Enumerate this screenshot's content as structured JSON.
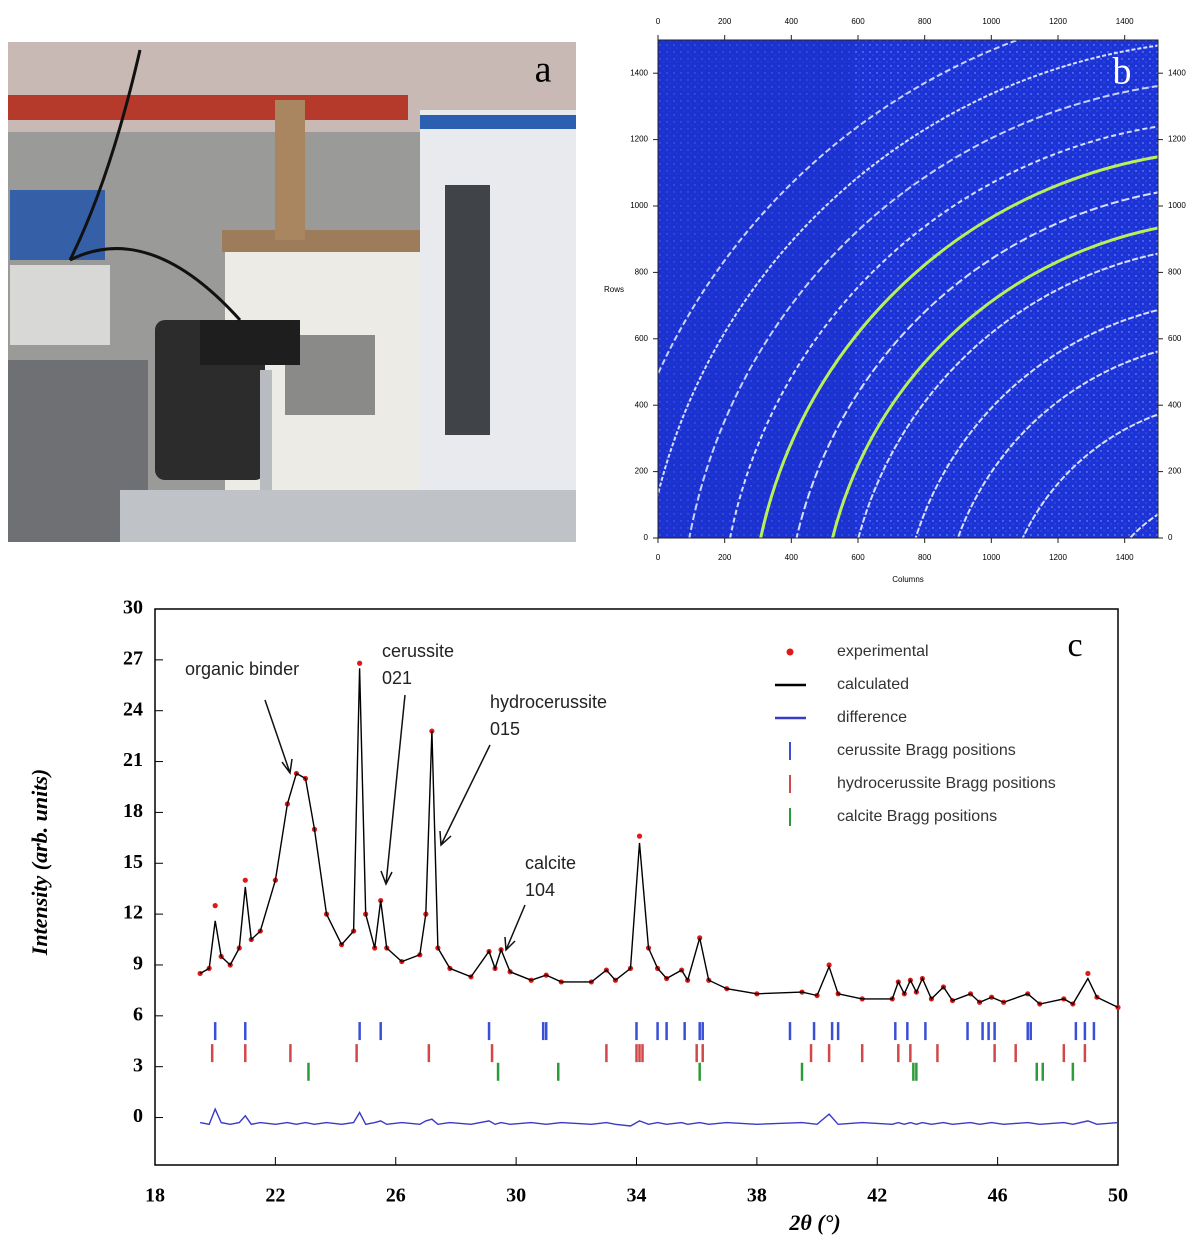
{
  "photo": {
    "label": "a"
  },
  "detector_image": {
    "label": "b",
    "xlabel": "Columns",
    "ylabel": "Rows",
    "xlim": [
      0,
      1500
    ],
    "ylim": [
      0,
      1500
    ],
    "xticks": [
      0,
      200,
      400,
      600,
      800,
      1000,
      1200,
      1400
    ],
    "yticks": [
      0,
      200,
      400,
      600,
      800,
      1000,
      1200,
      1400
    ]
  },
  "chart_data": {
    "type": "line",
    "panel_label": "c",
    "xlabel": "2θ (°)",
    "ylabel": "Intensity (arb. units)",
    "xlim": [
      18,
      50
    ],
    "ylim": [
      -2.8,
      30
    ],
    "xticks": [
      18,
      22,
      26,
      30,
      34,
      38,
      42,
      46,
      50
    ],
    "yticks": [
      0,
      3,
      6,
      9,
      12,
      15,
      18,
      21,
      24,
      27,
      30
    ],
    "annotations": [
      {
        "lines": [
          "organic binder"
        ]
      },
      {
        "lines": [
          "cerussite",
          "021"
        ]
      },
      {
        "lines": [
          "hydrocerussite",
          "015"
        ]
      },
      {
        "lines": [
          "calcite",
          "104"
        ]
      }
    ],
    "x": [
      19.5,
      19.8,
      20.0,
      20.2,
      20.5,
      20.8,
      21.0,
      21.2,
      21.5,
      22.0,
      22.4,
      22.7,
      23.0,
      23.3,
      23.7,
      24.2,
      24.6,
      24.8,
      25.0,
      25.3,
      25.5,
      25.7,
      26.2,
      26.8,
      27.0,
      27.2,
      27.4,
      27.8,
      28.5,
      29.1,
      29.3,
      29.5,
      29.8,
      30.5,
      31.0,
      31.5,
      32.5,
      33.0,
      33.3,
      33.8,
      34.1,
      34.4,
      34.7,
      35.0,
      35.5,
      35.7,
      36.1,
      36.4,
      37.0,
      38.0,
      39.5,
      40.0,
      40.4,
      40.7,
      41.5,
      42.5,
      42.7,
      42.9,
      43.1,
      43.3,
      43.5,
      43.8,
      44.2,
      44.5,
      45.1,
      45.4,
      45.8,
      46.2,
      47.0,
      47.4,
      48.2,
      48.5,
      49.0,
      49.3,
      50.0
    ],
    "series": [
      {
        "name": "experimental",
        "color": "#e01818",
        "marker": "dot",
        "values": [
          8.5,
          8.8,
          12.5,
          9.5,
          9.0,
          10.0,
          14.0,
          10.5,
          11.0,
          14.0,
          18.5,
          20.3,
          20.0,
          17.0,
          12.0,
          10.2,
          11.0,
          26.8,
          12.0,
          10.0,
          12.8,
          10.0,
          9.2,
          9.6,
          12.0,
          22.8,
          10.0,
          8.8,
          8.3,
          9.8,
          8.8,
          9.9,
          8.6,
          8.1,
          8.4,
          8.0,
          8.0,
          8.7,
          8.1,
          8.8,
          16.6,
          10.0,
          8.8,
          8.2,
          8.7,
          8.1,
          10.6,
          8.1,
          7.6,
          7.3,
          7.4,
          7.2,
          9.0,
          7.3,
          7.0,
          7.0,
          8.0,
          7.3,
          8.1,
          7.4,
          8.2,
          7.0,
          7.7,
          6.9,
          7.3,
          6.8,
          7.1,
          6.8,
          7.3,
          6.7,
          7.0,
          6.7,
          8.5,
          7.1,
          6.5
        ]
      },
      {
        "name": "calculated",
        "color": "#000000",
        "marker": "line",
        "values": [
          8.5,
          8.8,
          11.6,
          9.5,
          9.0,
          10.0,
          13.6,
          10.5,
          11.0,
          14.0,
          18.5,
          20.3,
          20.0,
          17.0,
          12.0,
          10.2,
          11.0,
          26.5,
          12.0,
          10.0,
          12.8,
          10.0,
          9.2,
          9.6,
          12.0,
          22.8,
          10.0,
          8.8,
          8.3,
          9.8,
          8.8,
          9.9,
          8.6,
          8.1,
          8.4,
          8.0,
          8.0,
          8.7,
          8.1,
          8.8,
          16.2,
          10.0,
          8.8,
          8.2,
          8.7,
          8.1,
          10.6,
          8.1,
          7.6,
          7.3,
          7.4,
          7.2,
          8.9,
          7.3,
          7.0,
          7.0,
          8.0,
          7.3,
          8.1,
          7.4,
          8.2,
          7.0,
          7.7,
          6.9,
          7.3,
          6.8,
          7.1,
          6.8,
          7.3,
          6.7,
          7.0,
          6.7,
          8.2,
          7.1,
          6.5
        ]
      },
      {
        "name": "difference",
        "color": "#3a3ac8",
        "marker": "line",
        "values": [
          -0.3,
          -0.4,
          0.5,
          -0.3,
          -0.4,
          -0.3,
          0.1,
          -0.4,
          -0.3,
          -0.4,
          -0.3,
          -0.4,
          -0.3,
          -0.4,
          -0.3,
          -0.4,
          -0.3,
          0.3,
          -0.4,
          -0.3,
          -0.2,
          -0.4,
          -0.3,
          -0.4,
          -0.2,
          -0.1,
          -0.4,
          -0.3,
          -0.4,
          -0.2,
          -0.4,
          -0.3,
          -0.4,
          -0.3,
          -0.4,
          -0.3,
          -0.4,
          -0.3,
          -0.4,
          -0.5,
          -0.2,
          -0.4,
          -0.3,
          -0.4,
          -0.3,
          -0.4,
          -0.3,
          -0.4,
          -0.3,
          -0.4,
          -0.3,
          -0.4,
          0.2,
          -0.4,
          -0.3,
          -0.4,
          -0.3,
          -0.4,
          -0.3,
          -0.4,
          -0.3,
          -0.4,
          -0.3,
          -0.4,
          -0.3,
          -0.4,
          -0.3,
          -0.4,
          -0.3,
          -0.4,
          -0.3,
          -0.4,
          -0.2,
          -0.4,
          -0.3
        ]
      },
      {
        "name": "cerussite Bragg positions",
        "color": "#3a4fd8",
        "marker": "tick",
        "y": 5.1,
        "positions": [
          20.0,
          21.0,
          24.8,
          25.5,
          29.1,
          30.9,
          31.0,
          34.0,
          34.7,
          35.0,
          35.6,
          36.1,
          36.2,
          39.1,
          39.9,
          40.5,
          40.7,
          42.6,
          43.0,
          43.6,
          45.0,
          45.5,
          45.7,
          45.9,
          47.0,
          47.1,
          48.6,
          48.9,
          49.2
        ]
      },
      {
        "name": "hydrocerussite Bragg positions",
        "color": "#d04848",
        "marker": "tick",
        "y": 3.8,
        "positions": [
          19.9,
          21.0,
          22.5,
          24.7,
          27.1,
          29.2,
          33.0,
          34.0,
          34.1,
          34.2,
          36.0,
          36.2,
          39.8,
          40.4,
          41.5,
          42.7,
          43.1,
          44.0,
          45.9,
          46.6,
          48.2,
          48.9
        ]
      },
      {
        "name": "calcite Bragg positions",
        "color": "#2e9a3a",
        "marker": "tick",
        "y": 2.7,
        "positions": [
          23.1,
          29.4,
          31.4,
          36.1,
          39.5,
          43.2,
          43.3,
          47.3,
          47.5,
          48.5
        ]
      }
    ]
  }
}
